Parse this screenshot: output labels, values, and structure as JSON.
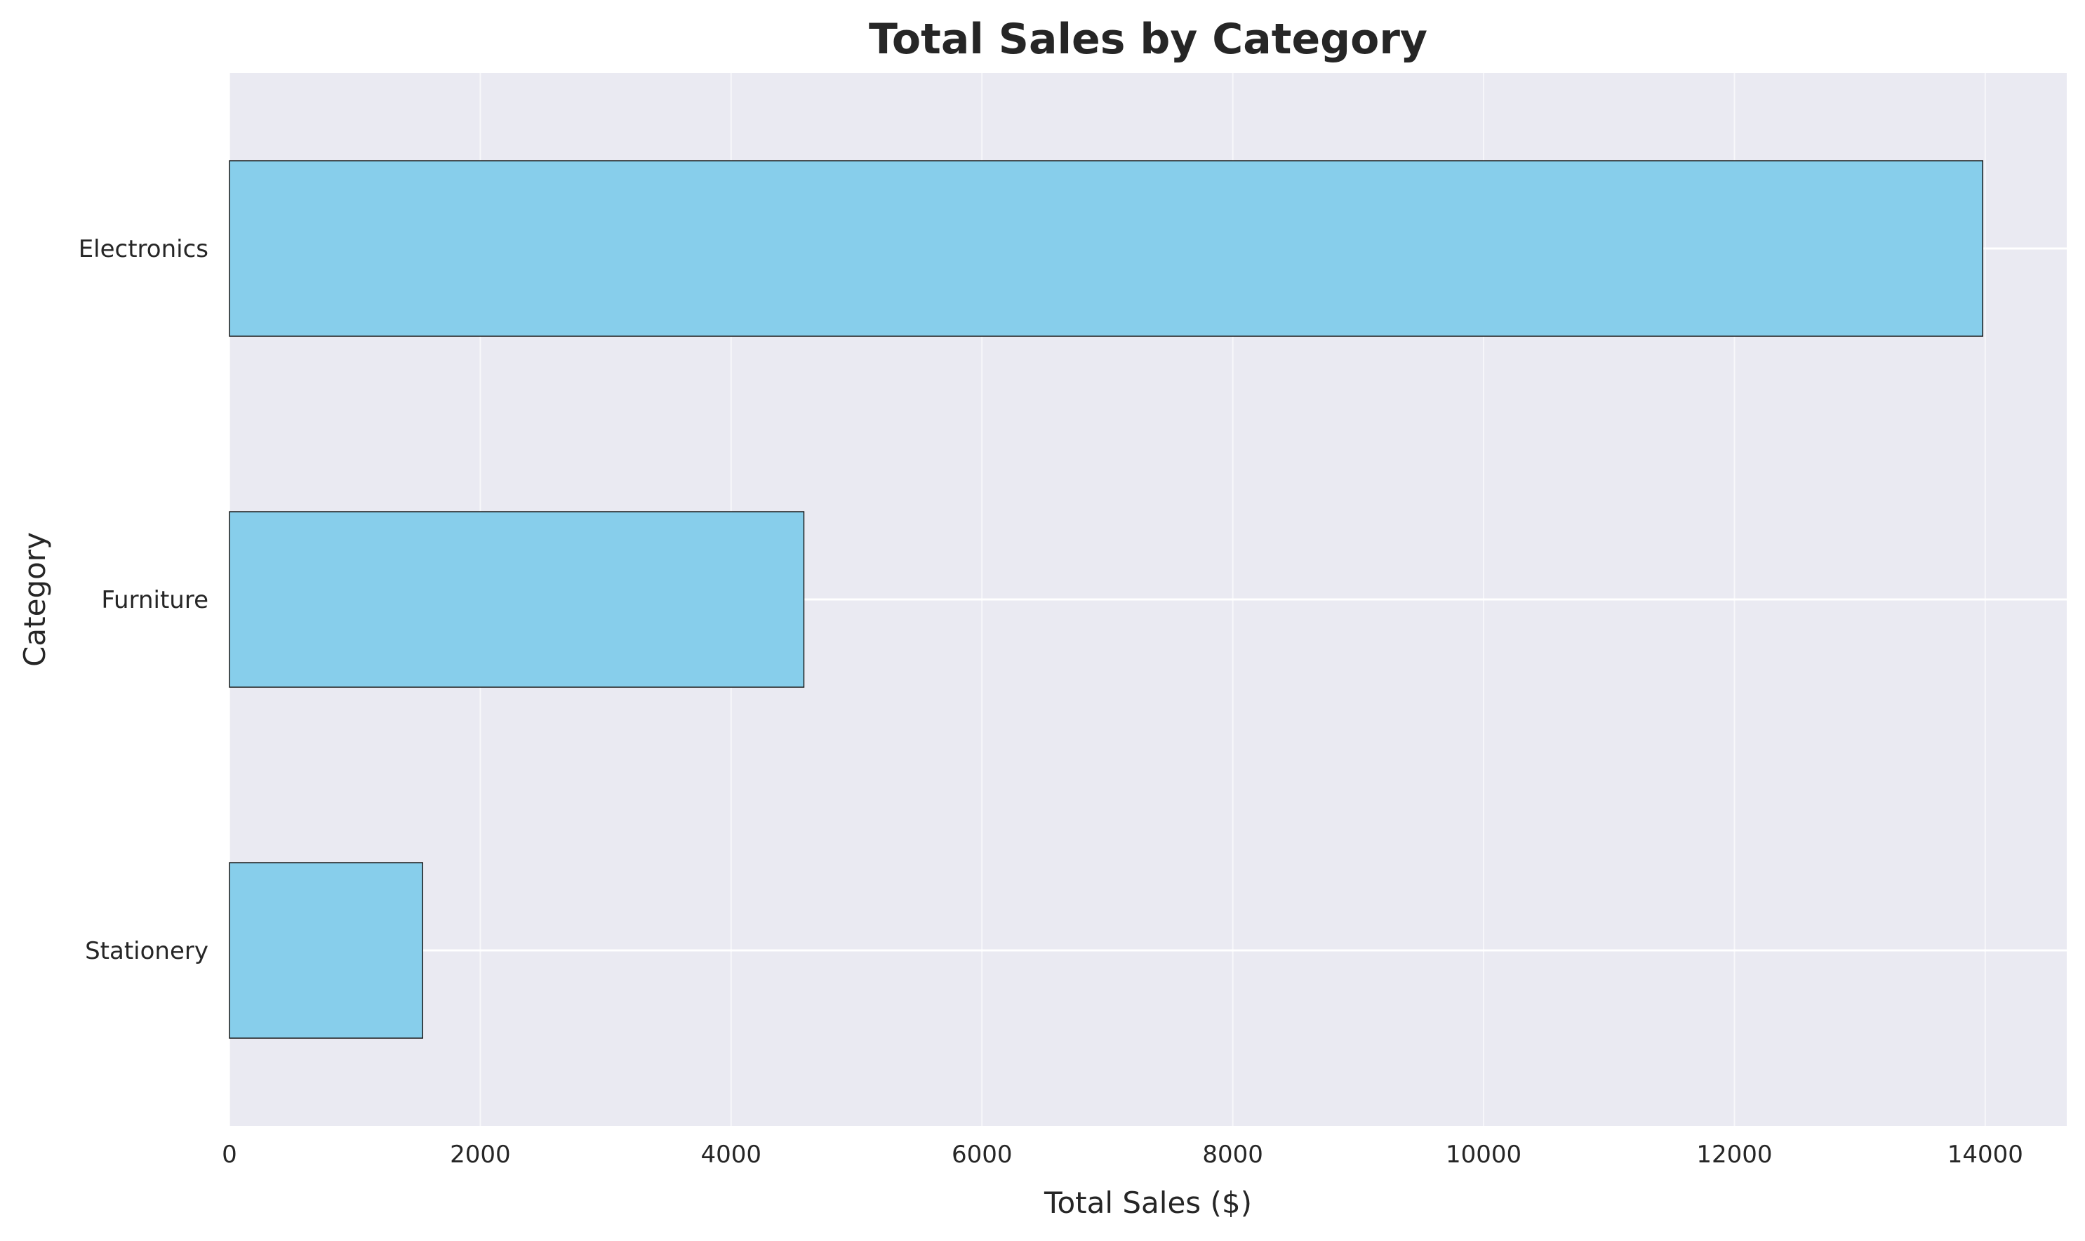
{
  "chart_data": {
    "type": "bar",
    "orientation": "horizontal",
    "title": "Total Sales by Category",
    "xlabel": "Total Sales ($)",
    "ylabel": "Category",
    "categories": [
      "Electronics",
      "Furniture",
      "Stationery"
    ],
    "values": [
      13980,
      4580,
      1540
    ],
    "xlim": [
      0,
      14650
    ],
    "xticks": [
      0,
      2000,
      4000,
      6000,
      8000,
      10000,
      12000,
      14000
    ],
    "grid": true,
    "legend": "none",
    "colors": {
      "bar_fill": "#87CEEB",
      "bar_edge": "#1a1a1a",
      "plot_background": "#EAEAF2",
      "grid": "#ffffff",
      "text": "#262626"
    }
  }
}
